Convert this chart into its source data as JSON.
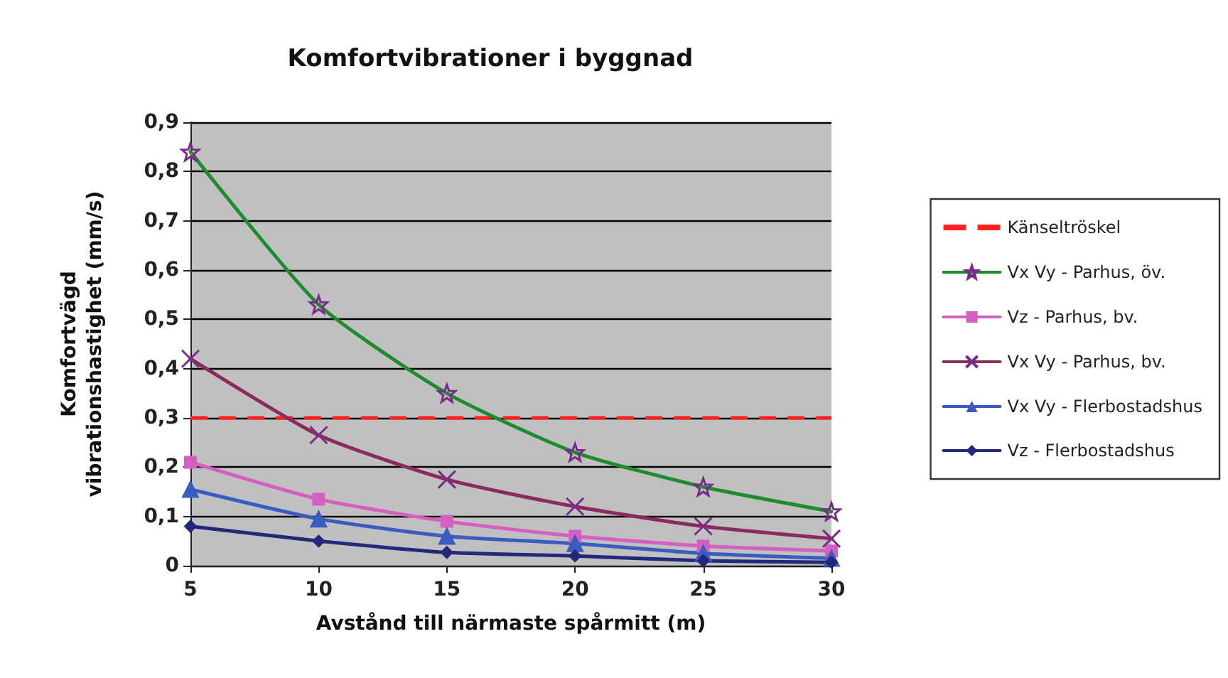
{
  "chart_data": {
    "type": "line",
    "title": "Komfortvibrationer i byggnad",
    "xlabel": "Avstånd till närmaste spårmitt (m)",
    "ylabel": "Komfortvägd\nvibrationshastighet (mm/s)",
    "x": [
      5,
      10,
      15,
      20,
      25,
      30
    ],
    "series": [
      {
        "name": "Vx Vy - Parhus, öv.",
        "color": "#1e8c2e",
        "marker": "star",
        "values": [
          0.84,
          0.53,
          0.35,
          0.23,
          0.16,
          0.11
        ]
      },
      {
        "name": "Vz - Parhus, bv.",
        "color": "#d45fc0",
        "marker": "square",
        "values": [
          0.21,
          0.135,
          0.09,
          0.06,
          0.04,
          0.03
        ]
      },
      {
        "name": "Vx Vy - Parhus, bv.",
        "color": "#8b2a5e",
        "marker": "cross",
        "values": [
          0.42,
          0.265,
          0.175,
          0.12,
          0.08,
          0.055
        ]
      },
      {
        "name": "Vx Vy - Flerbostadshus",
        "color": "#3a5cc0",
        "marker": "triangle",
        "values": [
          0.155,
          0.095,
          0.06,
          0.045,
          0.025,
          0.015
        ]
      },
      {
        "name": "Vz - Flerbostadshus",
        "color": "#23287a",
        "marker": "diamond",
        "values": [
          0.08,
          0.05,
          0.027,
          0.02,
          0.01,
          0.007
        ]
      }
    ],
    "ref_lines": [
      {
        "axis": "y",
        "value": 0.3,
        "label": "Känseltröskel",
        "color": "#ff2020",
        "line_style": "dashed"
      }
    ],
    "xlim": [
      5,
      30
    ],
    "xticks": [
      5,
      10,
      15,
      20,
      25,
      30
    ],
    "ylim": [
      0,
      0.9
    ],
    "yticks": [
      0,
      {
        "value": 0.1,
        "label": "0,1"
      },
      {
        "value": 0.2,
        "label": "0,2"
      },
      {
        "value": 0.3,
        "label": "0,3"
      },
      {
        "value": 0.4,
        "label": "0,4"
      },
      {
        "value": 0.5,
        "label": "0,5"
      },
      {
        "value": 0.6,
        "label": "0,6"
      },
      {
        "value": 0.7,
        "label": "0,7"
      },
      {
        "value": 0.8,
        "label": "0,8"
      },
      {
        "value": 0.9,
        "label": "0,9"
      }
    ],
    "grid": "y",
    "legend": "right"
  }
}
